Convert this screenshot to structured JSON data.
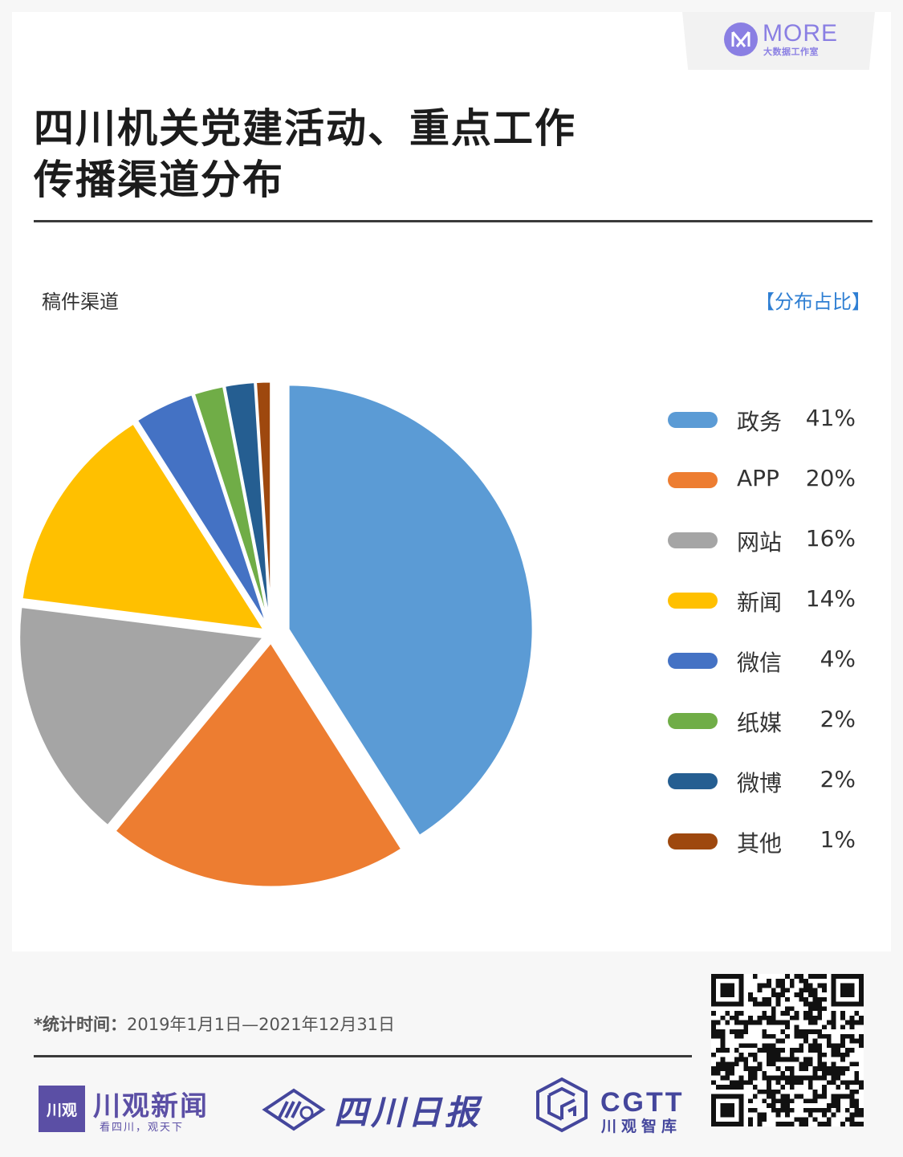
{
  "brand": {
    "name": "MORE",
    "subtitle": "大数据工作室"
  },
  "title": {
    "line1": "四川机关党建活动、重点工作",
    "line2": "传播渠道分布"
  },
  "label_left": "稿件渠道",
  "label_right": "【分布占比】",
  "chart_data": {
    "type": "pie",
    "title": "四川机关党建活动、重点工作传播渠道分布",
    "slices": [
      {
        "name": "政务",
        "value": 41,
        "label": "41%",
        "color": "#5b9bd5"
      },
      {
        "name": "APP",
        "value": 20,
        "label": "20%",
        "color": "#ed7d31"
      },
      {
        "name": "网站",
        "value": 16,
        "label": "16%",
        "color": "#a5a5a5"
      },
      {
        "name": "新闻",
        "value": 14,
        "label": "14%",
        "color": "#ffc000"
      },
      {
        "name": "微信",
        "value": 4,
        "label": "4%",
        "color": "#4472c4"
      },
      {
        "name": "纸媒",
        "value": 2,
        "label": "2%",
        "color": "#70ad47"
      },
      {
        "name": "微博",
        "value": 2,
        "label": "2%",
        "color": "#255e91"
      },
      {
        "name": "其他",
        "value": 1,
        "label": "1%",
        "color": "#9e480e"
      }
    ],
    "legend_position": "right"
  },
  "footnote": {
    "label": "*统计时间：",
    "value": "2019年1月1日—2021年12月31日"
  },
  "logos": {
    "chuanguan": {
      "mark": "川观",
      "name": "川观新闻",
      "slogan": "看四川，观天下"
    },
    "sichuan_daily": {
      "name": "四川日报"
    },
    "cgtt": {
      "name": "CGTT",
      "subtitle": "川观智库"
    }
  }
}
